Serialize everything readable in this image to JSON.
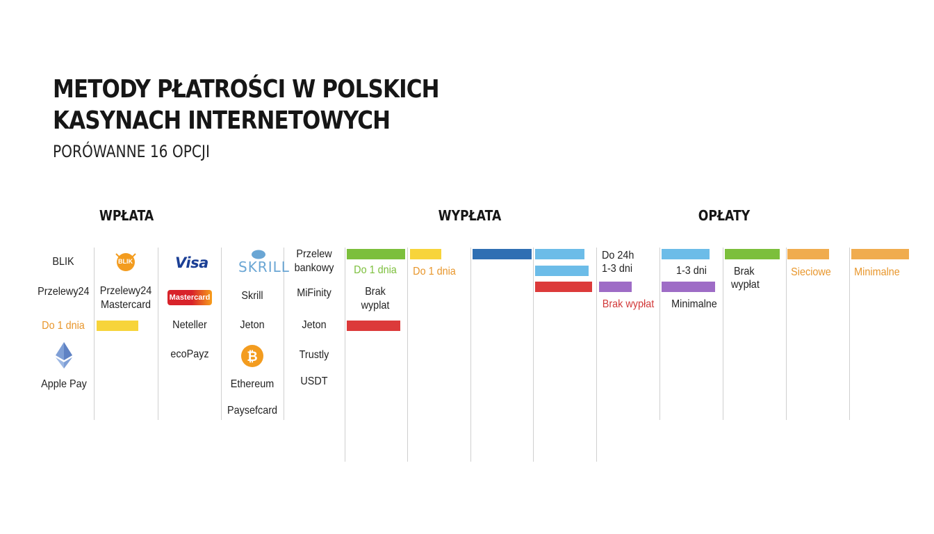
{
  "header": {
    "title_line1": "METODY PŁATROŚCI W POLSKICH",
    "title_line2": "KASYNACH INTERNETOWYCH",
    "subtitle": "PORÓWANNE 16 OPCJI"
  },
  "sections": {
    "wplata": "WPŁATA",
    "wyplata": "WYPŁATA",
    "oplaty": "OPŁATY"
  },
  "col1": {
    "blik": "BLIK",
    "przelewy24": "Przelewy24",
    "do1dnia": "Do 1 dnia",
    "applepay": "Apple Pay"
  },
  "col2": {
    "blik_logo": "BLIK",
    "label_line1": "Przelewy24",
    "label_line2": "Mastercard"
  },
  "col3": {
    "visa_logo": "Visa",
    "mastercard_logo": "Mastercard",
    "neteller": "Neteller",
    "ecopayz": "ecoPayz"
  },
  "col4": {
    "skrill_logo": "SKRILL",
    "skrill": "Skrill",
    "jeton": "Jeton",
    "ethereum": "Ethereum",
    "paysafecard": "Paysefcard"
  },
  "col5": {
    "przelew_line1": "Przelew",
    "przelew_line2": "bankowy",
    "mifinity": "MiFinity",
    "jeton": "Jeton",
    "trustly": "Trustly",
    "usdt": "USDT"
  },
  "col6": {
    "do1dnia": "Do 1 dnia",
    "brak_line1": "Brak",
    "brak_line2": "wyplat"
  },
  "col7": {
    "do1dnia": "Do 1 dnia"
  },
  "col9": {
    "do24h": "Do 24h",
    "days13": "1-3 dni",
    "brak": "Brak wypłat"
  },
  "col10": {
    "days13": "1-3 dni",
    "minimalne": "Minimalne"
  },
  "col11": {
    "brak_line1": "Brak",
    "brak_line2": "wypłat"
  },
  "col12": {
    "sieciowe": "Sieciowe"
  },
  "col13": {
    "minimalne": "Minimalne"
  },
  "colors": {
    "green": "#7cbf3c",
    "yellow": "#f7d43b",
    "dark_blue": "#2f6fb3",
    "light_blue": "#6cbce8",
    "red": "#dc3a3a",
    "purple": "#9e6cc6",
    "orange": "#f0ac4e",
    "icons": {
      "blik": "blik-logo-icon",
      "visa": "visa-logo-icon",
      "mastercard": "mastercard-logo-icon",
      "skrill": "skrill-logo-icon",
      "bitcoin": "bitcoin-icon",
      "ethereum": "ethereum-icon"
    }
  }
}
